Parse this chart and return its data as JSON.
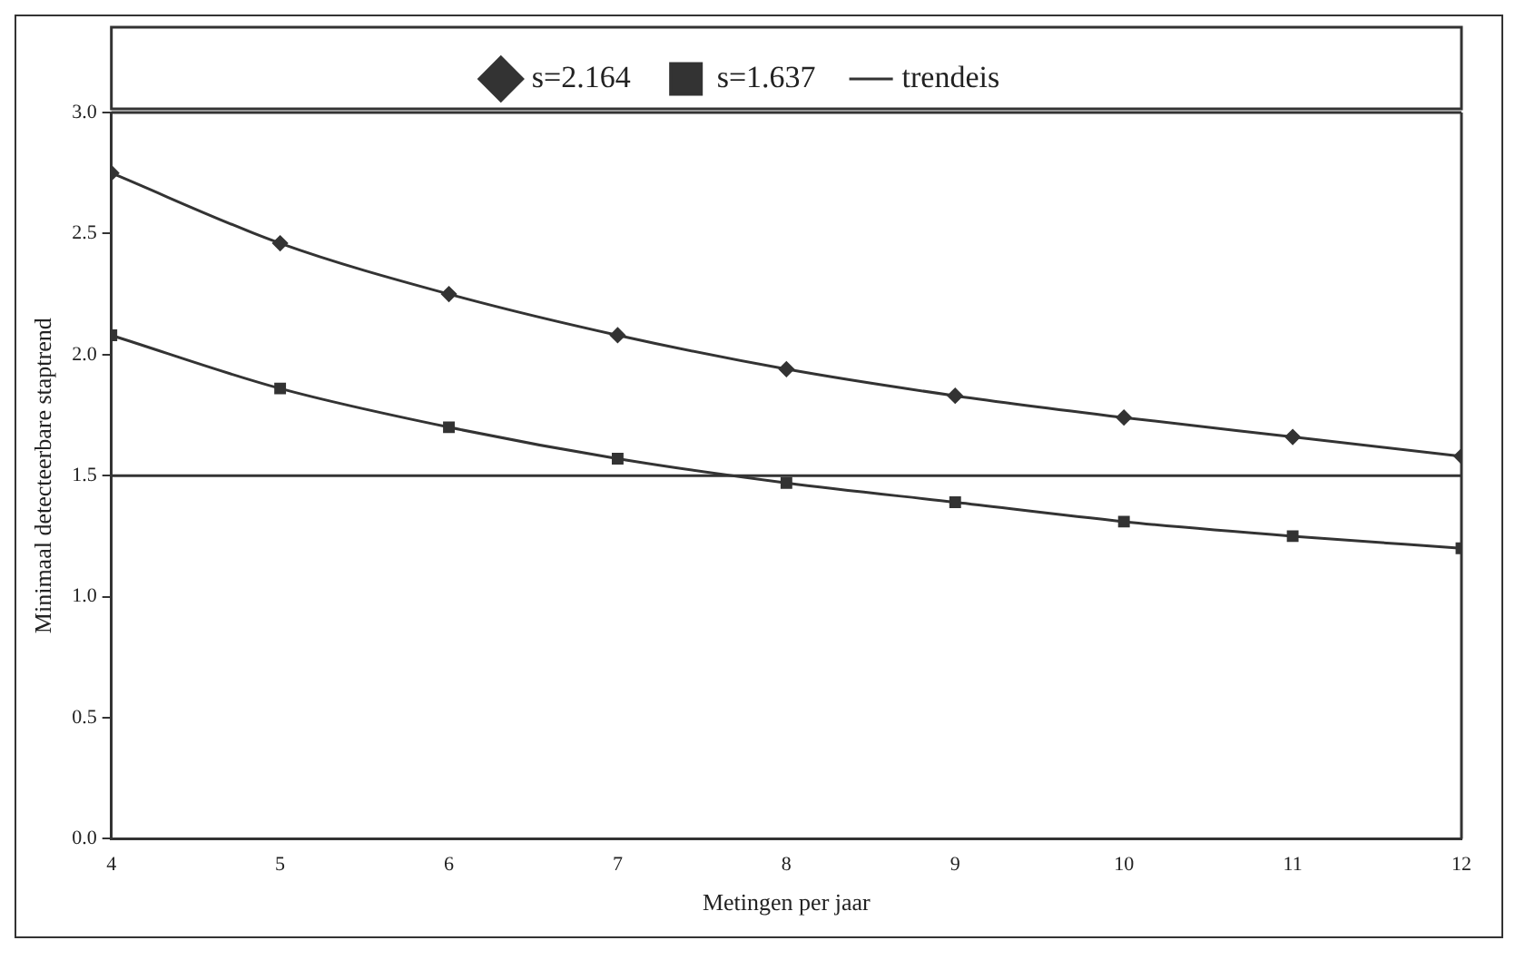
{
  "chart_data": {
    "type": "line",
    "xlabel": "Metingen per jaar",
    "ylabel": "Minimaal detecteerbare staptrend",
    "x": [
      4,
      5,
      6,
      7,
      8,
      9,
      10,
      11,
      12
    ],
    "xlim": [
      4,
      12
    ],
    "xticks": [
      4,
      5,
      6,
      7,
      8,
      9,
      10,
      11,
      12
    ],
    "ylim": [
      0,
      3
    ],
    "yticks": [
      {
        "value": 0,
        "label": "0.0"
      },
      {
        "value": 0.5,
        "label": "0.5"
      },
      {
        "value": 1,
        "label": "1.0"
      },
      {
        "value": 1.5,
        "label": "1.5"
      },
      {
        "value": 2,
        "label": "2.0"
      },
      {
        "value": 2.5,
        "label": "2.5"
      },
      {
        "value": 3,
        "label": "3.0"
      }
    ],
    "grid": false,
    "legend": "top",
    "series": [
      {
        "name": "s=2.164",
        "color": "#333333",
        "marker": "diamond",
        "values": [
          2.75,
          2.46,
          2.25,
          2.08,
          1.94,
          1.83,
          1.74,
          1.66,
          1.58
        ]
      },
      {
        "name": "s=1.637",
        "color": "#333333",
        "marker": "square",
        "values": [
          2.08,
          1.86,
          1.7,
          1.57,
          1.47,
          1.39,
          1.31,
          1.25,
          1.2
        ]
      },
      {
        "name": "trendeis",
        "color": "#333333",
        "marker": "none",
        "values": [
          1.5,
          1.5,
          1.5,
          1.5,
          1.5,
          1.5,
          1.5,
          1.5,
          1.5
        ]
      }
    ]
  }
}
